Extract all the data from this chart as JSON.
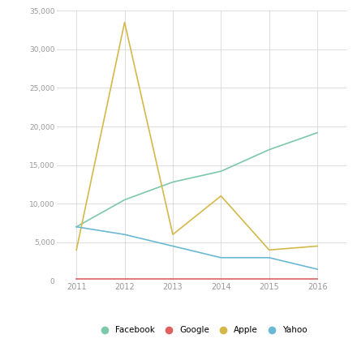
{
  "years": [
    2011,
    2012,
    2013,
    2014,
    2015,
    2016
  ],
  "facebook": [
    7000,
    10500,
    12800,
    14200,
    17000,
    19200
  ],
  "google": [
    200,
    200,
    200,
    200,
    200,
    200
  ],
  "apple": [
    4000,
    33500,
    6000,
    11000,
    4000,
    4500
  ],
  "yahoo": [
    7000,
    6000,
    4500,
    3000,
    3000,
    1500
  ],
  "facebook_color": "#7dc8a8",
  "google_color": "#e06060",
  "apple_color": "#d4b84a",
  "yahoo_color": "#6ab8d4",
  "ylim": [
    0,
    35000
  ],
  "yticks": [
    0,
    5000,
    10000,
    15000,
    20000,
    25000,
    30000,
    35000
  ],
  "ytick_labels": [
    "0",
    "5,000",
    "10,000",
    "15,000",
    "20,000",
    "25,000",
    "30,000",
    "35,000"
  ],
  "background_color": "#ffffff",
  "grid_color": "#d8d8d8",
  "legend_labels": [
    "Facebook",
    "Google",
    "Apple",
    "Yahoo"
  ],
  "legend_colors": [
    "#7dc8a8",
    "#e06060",
    "#d4b84a",
    "#6ab8d4"
  ]
}
